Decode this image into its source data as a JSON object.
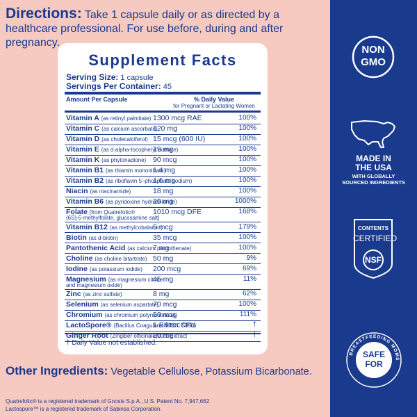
{
  "directions": {
    "label": "Directions:",
    "text": " Take 1 capsule daily or as directed by a healthcare professional. For use before, during and after pregnancy."
  },
  "supplement_facts": {
    "title": "Supplement Facts",
    "serving_size_label": "Serving Size:",
    "serving_size_value": " 1 capsule",
    "servings_label": "Servings Per Container:",
    "servings_value": " 45",
    "amount_header": "Amount Per Capsule",
    "dv_header": "% Daily Value",
    "dv_subheader": "for Pregnant or Lactating Women",
    "rows": [
      {
        "name": "Vitamin A",
        "form": "(as retinyl palmitate)",
        "amount": "1300 mcg RAE",
        "dv": "100%"
      },
      {
        "name": "Vitamin C",
        "form": "(as calcium ascorbate)",
        "amount": "120 mg",
        "dv": "100%"
      },
      {
        "name": "Vitamin D",
        "form": "(as cholecalciferol)",
        "amount": "15 mcg (600 IU)",
        "dv": "100%"
      },
      {
        "name": "Vitamin E",
        "form": "(as d-alpha-tocopheryl acetate)",
        "amount": "19 mg",
        "dv": "100%"
      },
      {
        "name": "Vitamin K",
        "form": "(as phytonadione)",
        "amount": "90 mcg",
        "dv": "100%"
      },
      {
        "name": "Vitamin B1",
        "form": "(as thiamin mononitrate)",
        "amount": "1.4 mg",
        "dv": "100%"
      },
      {
        "name": "Vitamin B2",
        "form": "(as riboflavin 5'-phosphate sodium)",
        "amount": "1.6 mg",
        "dv": "100%"
      },
      {
        "name": "Niacin",
        "form": "(as niacinamide)",
        "amount": "18 mg",
        "dv": "100%"
      },
      {
        "name": "Vitamin B6",
        "form": "(as pyridoxine hydrochloride)",
        "amount": "20 mg",
        "dv": "1000%"
      },
      {
        "name": "Folate",
        "form": "[from Quatrefolic®",
        "form2": "(6S)-5-methylfolate, glucosamine salt]",
        "amount": "1010 mcg DFE",
        "dv": "168%"
      },
      {
        "name": "Vitamin B12",
        "form": "(as methylcobalamin)",
        "amount": "5 mcg",
        "dv": "179%"
      },
      {
        "name": "Biotin",
        "form": "(as d-biotin)",
        "amount": "35 mcg",
        "dv": "100%"
      },
      {
        "name": "Pantothenic Acid",
        "form": "(as calcium pantothenate)",
        "amount": "7 mg",
        "dv": "100%"
      },
      {
        "name": "Choline",
        "form": "(as choline bitartrate)",
        "amount": "50 mg",
        "dv": "9%"
      },
      {
        "name": "Iodine",
        "form": "(as potassium iodide)",
        "amount": "200 mcg",
        "dv": "69%"
      },
      {
        "name": "Magnesium",
        "form": "(as magnesium citrate",
        "form2": "and magnesium oxide)",
        "amount": "45 mg",
        "dv": "11%"
      },
      {
        "name": "Zinc",
        "form": "(as zinc sulfate)",
        "amount": "8 mg",
        "dv": "62%"
      },
      {
        "name": "Selenium",
        "form": "(as selenium aspartate)",
        "amount": "70 mcg",
        "dv": "100%"
      },
      {
        "name": "Chromium",
        "form": "(as chromium polynicotinate)",
        "amount": "50 mcg",
        "dv": "111%"
      },
      {
        "name": "LactoSpore®",
        "form": "(Bacillus Coagulans MTCC 5856)",
        "amount": "1 Billion CFU",
        "dv": "†"
      },
      {
        "name": "Ginger Root",
        "form": "(Zingiber officinale)10:1 Extract",
        "amount": "20 mg",
        "dv": "†"
      }
    ],
    "footnote": "† Daily Value not established."
  },
  "other_ingredients": {
    "label": "Other Ingredients:",
    "text": " Vegetable Cellulose, Potassium Bicarbonate."
  },
  "trademarks": [
    "Quatrefolic® is a registered trademark of Gnosis S.p.A., U.S. Patent No. 7,947,662",
    "Lactospore™ is a registered trademark of Sabinsa Corporation."
  ],
  "badges": {
    "non_gmo_line1": "NON",
    "non_gmo_line2": "GMO",
    "made_in_line1": "MADE IN",
    "made_in_line2": "THE USA",
    "made_in_line3": "WITH GLOBALLY",
    "made_in_line4": "SOURCED INGREDIENTS",
    "nsf_top1": "CONTENTS",
    "nsf_top2": "CERTIFIED",
    "nsf_mark": "NSF",
    "bf_ring": "BREASTFEEDING MOMS",
    "bf_line1": "SAFE",
    "bf_line2": "FOR"
  },
  "colors": {
    "navy": "#1a3a8d",
    "pink": "#f6c9c1",
    "white": "#ffffff"
  }
}
